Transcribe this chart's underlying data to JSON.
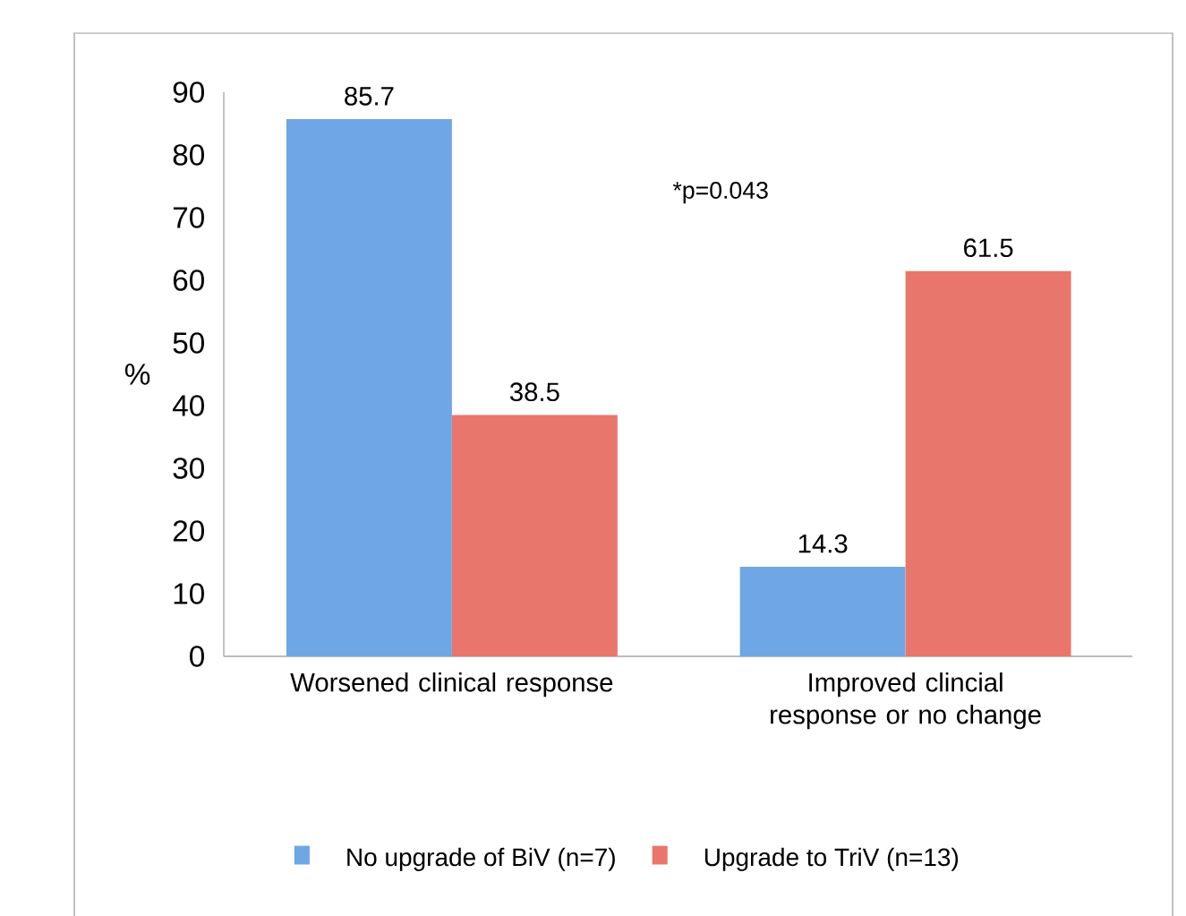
{
  "chart_data": {
    "type": "bar",
    "ylabel": "%",
    "categories": [
      "Worsened clinical response",
      "Improved clincial response or no change"
    ],
    "series": [
      {
        "name": "No upgrade of BiV (n=7)",
        "color": "#6ea6e6",
        "values": [
          85.7,
          14.3
        ]
      },
      {
        "name": "Upgrade to TriV (n=13)",
        "color": "#e8766c",
        "values": [
          38.5,
          61.5
        ]
      }
    ],
    "ylim": [
      0,
      90
    ],
    "yticks": [
      0,
      10,
      20,
      30,
      40,
      50,
      60,
      70,
      80,
      90
    ],
    "data_labels": true,
    "grid": false,
    "legend": "bottom",
    "annotations": [
      "*p=0.043"
    ]
  }
}
